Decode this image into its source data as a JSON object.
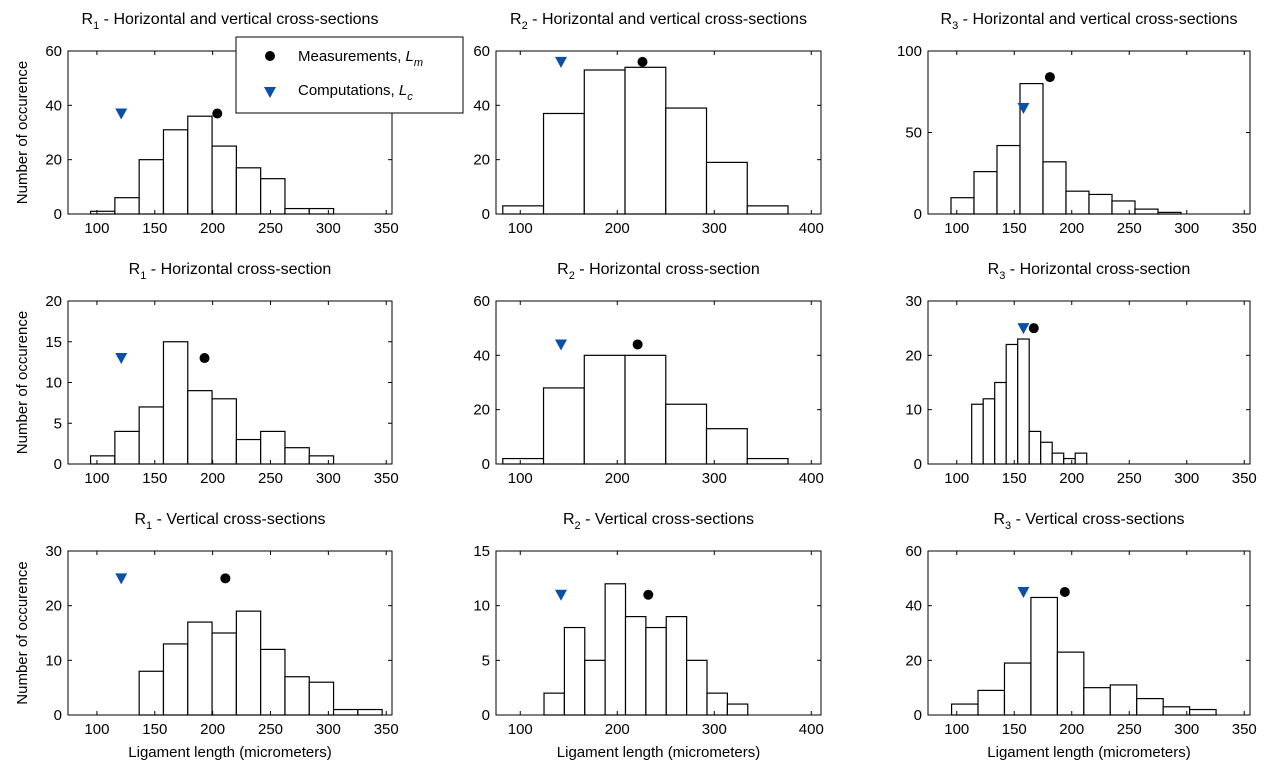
{
  "colors": {
    "bar_fill": "#ffffff",
    "bar_stroke": "#000000",
    "measurement_marker": "#000000",
    "computation_marker": "#0a4fa8"
  },
  "legend": {
    "location": "top-right of first panel",
    "measurements_label": "Measurements, ",
    "measurements_symbol": "L",
    "measurements_sub": "m",
    "computations_label": "Computations, ",
    "computations_symbol": "L",
    "computations_sub": "c"
  },
  "chart_data": [
    {
      "type": "bar",
      "title_main": "R",
      "title_sub": "1",
      "title_rest": " - Horizontal and vertical cross-sections",
      "ylabel": "Number of occurence",
      "xlabel": "",
      "xlim": [
        75,
        355
      ],
      "ylim": [
        0,
        60
      ],
      "xticks": [
        100,
        150,
        200,
        250,
        300,
        350
      ],
      "yticks": [
        0,
        20,
        40,
        60
      ],
      "bin_width": 21,
      "bins": [
        {
          "center": 105,
          "count": 1
        },
        {
          "center": 126,
          "count": 6
        },
        {
          "center": 147,
          "count": 20
        },
        {
          "center": 168,
          "count": 31
        },
        {
          "center": 189,
          "count": 36
        },
        {
          "center": 210,
          "count": 25
        },
        {
          "center": 231,
          "count": 17
        },
        {
          "center": 252,
          "count": 13
        },
        {
          "center": 273,
          "count": 2
        },
        {
          "center": 294,
          "count": 2
        }
      ],
      "measurement": {
        "x": 204,
        "y": 37
      },
      "computation": {
        "x": 121,
        "y": 37
      }
    },
    {
      "type": "bar",
      "title_main": "R",
      "title_sub": "2",
      "title_rest": " - Horizontal and vertical cross-sections",
      "ylabel": "",
      "xlabel": "",
      "xlim": [
        75,
        410
      ],
      "ylim": [
        0,
        60
      ],
      "xticks": [
        100,
        200,
        300,
        400
      ],
      "yticks": [
        0,
        20,
        40,
        60
      ],
      "bin_width": 42,
      "bins": [
        {
          "center": 103,
          "count": 3
        },
        {
          "center": 145,
          "count": 37
        },
        {
          "center": 187,
          "count": 53
        },
        {
          "center": 229,
          "count": 54
        },
        {
          "center": 271,
          "count": 39
        },
        {
          "center": 313,
          "count": 19
        },
        {
          "center": 355,
          "count": 3
        }
      ],
      "measurement": {
        "x": 226,
        "y": 56
      },
      "computation": {
        "x": 142,
        "y": 56
      }
    },
    {
      "type": "bar",
      "title_main": "R",
      "title_sub": "3",
      "title_rest": " - Horizontal and vertical cross-sections",
      "ylabel": "",
      "xlabel": "",
      "xlim": [
        75,
        355
      ],
      "ylim": [
        0,
        100
      ],
      "xticks": [
        100,
        150,
        200,
        250,
        300,
        350
      ],
      "yticks": [
        0,
        50,
        100
      ],
      "bin_width": 20,
      "bins": [
        {
          "center": 105,
          "count": 10
        },
        {
          "center": 125,
          "count": 26
        },
        {
          "center": 145,
          "count": 42
        },
        {
          "center": 165,
          "count": 80
        },
        {
          "center": 185,
          "count": 32
        },
        {
          "center": 205,
          "count": 14
        },
        {
          "center": 225,
          "count": 12
        },
        {
          "center": 245,
          "count": 8
        },
        {
          "center": 265,
          "count": 3
        },
        {
          "center": 285,
          "count": 1
        }
      ],
      "measurement": {
        "x": 181,
        "y": 84
      },
      "computation": {
        "x": 158,
        "y": 65
      }
    },
    {
      "type": "bar",
      "title_main": "R",
      "title_sub": "1",
      "title_rest": " - Horizontal cross-section",
      "ylabel": "Number of occurence",
      "xlabel": "",
      "xlim": [
        75,
        355
      ],
      "ylim": [
        0,
        20
      ],
      "xticks": [
        100,
        150,
        200,
        250,
        300,
        350
      ],
      "yticks": [
        0,
        5,
        10,
        15,
        20
      ],
      "bin_width": 21,
      "bins": [
        {
          "center": 105,
          "count": 1
        },
        {
          "center": 126,
          "count": 4
        },
        {
          "center": 147,
          "count": 7
        },
        {
          "center": 168,
          "count": 15
        },
        {
          "center": 189,
          "count": 9
        },
        {
          "center": 210,
          "count": 8
        },
        {
          "center": 231,
          "count": 3
        },
        {
          "center": 252,
          "count": 4
        },
        {
          "center": 273,
          "count": 2
        },
        {
          "center": 294,
          "count": 1
        }
      ],
      "measurement": {
        "x": 193,
        "y": 13
      },
      "computation": {
        "x": 121,
        "y": 13
      }
    },
    {
      "type": "bar",
      "title_main": "R",
      "title_sub": "2",
      "title_rest": " - Horizontal cross-section",
      "ylabel": "",
      "xlabel": "",
      "xlim": [
        75,
        410
      ],
      "ylim": [
        0,
        60
      ],
      "xticks": [
        100,
        200,
        300,
        400
      ],
      "yticks": [
        0,
        20,
        40,
        60
      ],
      "bin_width": 42,
      "bins": [
        {
          "center": 103,
          "count": 2
        },
        {
          "center": 145,
          "count": 28
        },
        {
          "center": 187,
          "count": 40
        },
        {
          "center": 229,
          "count": 40
        },
        {
          "center": 271,
          "count": 22
        },
        {
          "center": 313,
          "count": 13
        },
        {
          "center": 355,
          "count": 2
        }
      ],
      "measurement": {
        "x": 221,
        "y": 44
      },
      "computation": {
        "x": 142,
        "y": 44
      }
    },
    {
      "type": "bar",
      "title_main": "R",
      "title_sub": "3",
      "title_rest": " - Horizontal cross-section",
      "ylabel": "",
      "xlabel": "",
      "xlim": [
        75,
        355
      ],
      "ylim": [
        0,
        30
      ],
      "xticks": [
        100,
        150,
        200,
        250,
        300,
        350
      ],
      "yticks": [
        0,
        10,
        20,
        30
      ],
      "bin_width": 10,
      "bins": [
        {
          "center": 118,
          "count": 11
        },
        {
          "center": 128,
          "count": 12
        },
        {
          "center": 138,
          "count": 15
        },
        {
          "center": 148,
          "count": 22
        },
        {
          "center": 158,
          "count": 23
        },
        {
          "center": 168,
          "count": 6
        },
        {
          "center": 178,
          "count": 4
        },
        {
          "center": 188,
          "count": 2
        },
        {
          "center": 198,
          "count": 1
        },
        {
          "center": 208,
          "count": 2
        }
      ],
      "measurement": {
        "x": 167,
        "y": 25
      },
      "computation": {
        "x": 158,
        "y": 25
      }
    },
    {
      "type": "bar",
      "title_main": "R",
      "title_sub": "1",
      "title_rest": " - Vertical cross-sections",
      "ylabel": "Number of occurence",
      "xlabel": "Ligament length (micrometers)",
      "xlim": [
        75,
        355
      ],
      "ylim": [
        0,
        30
      ],
      "xticks": [
        100,
        150,
        200,
        250,
        300,
        350
      ],
      "yticks": [
        0,
        10,
        20,
        30
      ],
      "bin_width": 21,
      "bins": [
        {
          "center": 147,
          "count": 8
        },
        {
          "center": 168,
          "count": 13
        },
        {
          "center": 189,
          "count": 17
        },
        {
          "center": 210,
          "count": 15
        },
        {
          "center": 231,
          "count": 19
        },
        {
          "center": 252,
          "count": 12
        },
        {
          "center": 273,
          "count": 7
        },
        {
          "center": 294,
          "count": 6
        },
        {
          "center": 315,
          "count": 1
        },
        {
          "center": 336,
          "count": 1
        }
      ],
      "measurement": {
        "x": 211,
        "y": 25
      },
      "computation": {
        "x": 121,
        "y": 25
      }
    },
    {
      "type": "bar",
      "title_main": "R",
      "title_sub": "2",
      "title_rest": " - Vertical cross-sections",
      "ylabel": "",
      "xlabel": "Ligament length (micrometers)",
      "xlim": [
        75,
        410
      ],
      "ylim": [
        0,
        15
      ],
      "xticks": [
        100,
        200,
        300,
        400
      ],
      "yticks": [
        0,
        5,
        10,
        15
      ],
      "bin_width": 21,
      "bins": [
        {
          "center": 135,
          "count": 2
        },
        {
          "center": 156,
          "count": 8
        },
        {
          "center": 177,
          "count": 5
        },
        {
          "center": 198,
          "count": 12
        },
        {
          "center": 219,
          "count": 9
        },
        {
          "center": 240,
          "count": 8
        },
        {
          "center": 261,
          "count": 9
        },
        {
          "center": 282,
          "count": 5
        },
        {
          "center": 303,
          "count": 2
        },
        {
          "center": 324,
          "count": 1
        }
      ],
      "measurement": {
        "x": 232,
        "y": 11
      },
      "computation": {
        "x": 142,
        "y": 11
      }
    },
    {
      "type": "bar",
      "title_main": "R",
      "title_sub": "3",
      "title_rest": " - Vertical cross-sections",
      "ylabel": "",
      "xlabel": "Ligament length (micrometers)",
      "xlim": [
        75,
        355
      ],
      "ylim": [
        0,
        60
      ],
      "xticks": [
        100,
        150,
        200,
        250,
        300,
        350
      ],
      "yticks": [
        0,
        20,
        40,
        60
      ],
      "bin_width": 23,
      "bins": [
        {
          "center": 107,
          "count": 4
        },
        {
          "center": 130,
          "count": 9
        },
        {
          "center": 153,
          "count": 19
        },
        {
          "center": 176,
          "count": 43
        },
        {
          "center": 199,
          "count": 23
        },
        {
          "center": 222,
          "count": 10
        },
        {
          "center": 245,
          "count": 11
        },
        {
          "center": 268,
          "count": 6
        },
        {
          "center": 291,
          "count": 3
        },
        {
          "center": 314,
          "count": 2
        }
      ],
      "measurement": {
        "x": 194,
        "y": 45
      },
      "computation": {
        "x": 158,
        "y": 45
      }
    }
  ]
}
